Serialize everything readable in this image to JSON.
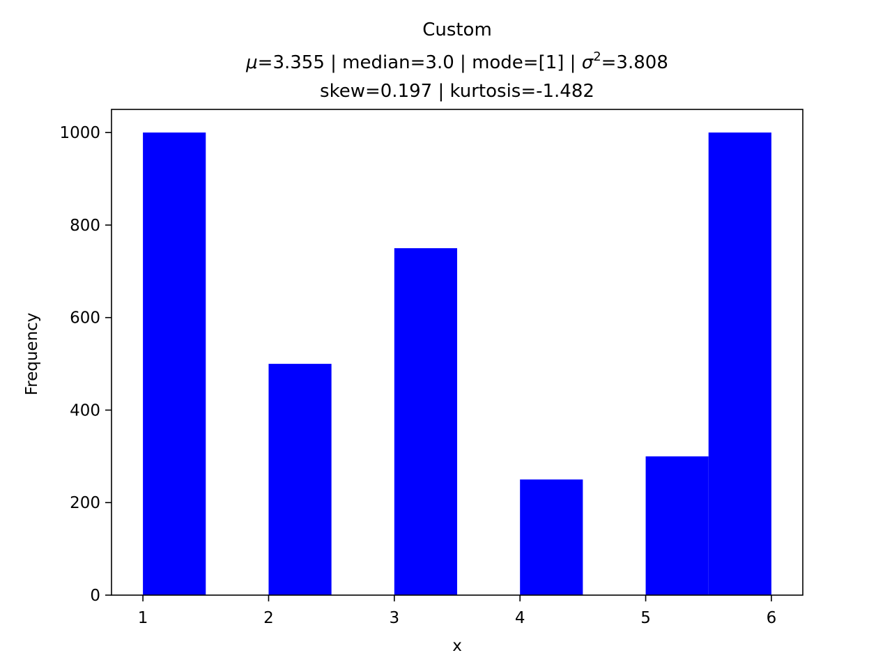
{
  "chart_data": {
    "type": "bar",
    "title": "Custom",
    "subtitle_line1": {
      "mu_symbol": "μ",
      "mu_rest": "=3.355 | median=3.0 | mode=[1] | ",
      "sigma_symbol": "σ",
      "sigma_sup": "2",
      "sigma_rest": "=3.808"
    },
    "subtitle_line2": "skew=0.197 | kurtosis=-1.482",
    "xlabel": "x",
    "ylabel": "Frequency",
    "xlim": [
      0.75,
      6.25
    ],
    "ylim": [
      0,
      1050
    ],
    "xticks": [
      1,
      2,
      3,
      4,
      5,
      6
    ],
    "yticks": [
      0,
      200,
      400,
      600,
      800,
      1000
    ],
    "bar_color": "#0000ff",
    "bins": [
      {
        "start": 1.0,
        "end": 1.5,
        "count": 1000
      },
      {
        "start": 1.5,
        "end": 2.0,
        "count": 0
      },
      {
        "start": 2.0,
        "end": 2.5,
        "count": 500
      },
      {
        "start": 2.5,
        "end": 3.0,
        "count": 0
      },
      {
        "start": 3.0,
        "end": 3.5,
        "count": 750
      },
      {
        "start": 3.5,
        "end": 4.0,
        "count": 0
      },
      {
        "start": 4.0,
        "end": 4.5,
        "count": 250
      },
      {
        "start": 4.5,
        "end": 5.0,
        "count": 0
      },
      {
        "start": 5.0,
        "end": 5.5,
        "count": 300
      },
      {
        "start": 5.5,
        "end": 6.0,
        "count": 1000
      }
    ]
  }
}
